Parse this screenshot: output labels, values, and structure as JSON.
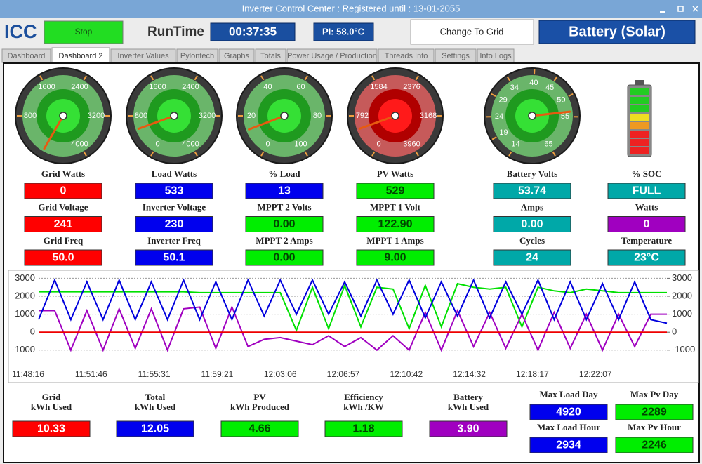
{
  "window": {
    "title": "Inverter Control Center : Registered until : 13-01-2055"
  },
  "toolbar": {
    "logo": "ICC",
    "stop": "Stop",
    "runtime_label": "RunTime",
    "runtime": "00:37:35",
    "pi_temp": "PI: 58.0°C",
    "mode_button": "Change To Grid",
    "mode": "Battery (Solar)"
  },
  "tabs": [
    "Dashboard",
    "Dashboard 2",
    "Inverter Values",
    "Pylontech",
    "Graphs",
    "Totals",
    "Power Usage / Production",
    "Threads Info",
    "Settings",
    "Info Logs"
  ],
  "selected_tab": 1,
  "columns": [
    {
      "gauge": {
        "lim": [
          0,
          4000
        ],
        "ticks": [
          800,
          1600,
          2400,
          3200,
          4000
        ],
        "colors": [
          "#6ab56a",
          "#1f9a1f",
          "#35e035"
        ]
      },
      "fields": [
        {
          "label": "Grid Watts",
          "value": 0,
          "color": "#ff0000"
        },
        {
          "label": "Grid Voltage",
          "value": 241,
          "color": "#ff0000"
        },
        {
          "label": "Grid Freq",
          "value": 50,
          "value_label": "50.0",
          "color": "#ff0000"
        }
      ]
    },
    {
      "gauge": {
        "lim": [
          0,
          4000
        ],
        "ticks": [
          0,
          800,
          1600,
          2400,
          3200,
          4000
        ],
        "colors": [
          "#6ab56a",
          "#1f9a1f",
          "#35e035"
        ]
      },
      "fields": [
        {
          "label": "Load Watts",
          "value": 533,
          "color": "#0000ee"
        },
        {
          "label": "Inverter Voltage",
          "value": 230,
          "color": "#0000ee"
        },
        {
          "label": "Inverter Freq",
          "value": 50.1,
          "color": "#0000ee"
        }
      ]
    },
    {
      "gauge": {
        "lim": [
          0,
          100
        ],
        "ticks": [
          0,
          20,
          40,
          60,
          80,
          100
        ],
        "colors": [
          "#6ab56a",
          "#1f9a1f",
          "#35e035"
        ]
      },
      "fields": [
        {
          "label": "% Load",
          "value": 13,
          "color": "#0000ee"
        },
        {
          "label": "MPPT 2 Volts",
          "value": 0,
          "value_label": "0.00",
          "color": "#00ee00"
        },
        {
          "label": "MPPT 2 Amps",
          "value": 0,
          "value_label": "0.00",
          "color": "#00ee00"
        }
      ]
    },
    {
      "gauge": {
        "lim": [
          0,
          3960
        ],
        "ticks": [
          0,
          792,
          1584,
          2376,
          3168,
          3960
        ],
        "colors": [
          "#c65a5a",
          "#b00000",
          "#ff1a1a"
        ]
      },
      "fields": [
        {
          "label": "PV Watts",
          "value": 529,
          "color": "#00ee00"
        },
        {
          "label": "MPPT 1 Volt",
          "value": 122.9,
          "value_label": "122.90",
          "color": "#00ee00"
        },
        {
          "label": "MPPT 1 Amps",
          "value": 9,
          "value_label": "9.00",
          "color": "#00ee00"
        }
      ]
    },
    {
      "gauge": {
        "lim": [
          14,
          65
        ],
        "ticks": [
          14,
          19,
          24,
          29,
          34,
          40,
          45,
          50,
          55,
          65
        ],
        "colors": [
          "#6ab56a",
          "#1f9a1f",
          "#35e035"
        ]
      },
      "fields": [
        {
          "label": "Battery Volts",
          "value": 53.74,
          "color": "#00a8a8"
        },
        {
          "label": "Amps",
          "value": 0,
          "value_label": "0.00",
          "color": "#00a8a8"
        },
        {
          "label": "Cycles",
          "value": 24,
          "color": "#00a8a8"
        }
      ]
    },
    {
      "fields": [
        {
          "label": "% SOC",
          "value": "FULL",
          "color": "#00a8a8"
        },
        {
          "label": "Watts",
          "value": 0,
          "color": "#a000c0"
        },
        {
          "label": "Temperature",
          "value": 23,
          "value_label": "23°C",
          "color": "#00a8a8"
        }
      ]
    }
  ],
  "chart": {
    "type": "line",
    "x_labels": [
      "11:48:16",
      "11:51:46",
      "11:55:31",
      "11:59:21",
      "12:03:06",
      "12:06:57",
      "12:10:42",
      "12:14:32",
      "12:18:17",
      "12:22:07"
    ],
    "ylim": [
      -1750,
      3250
    ],
    "yticks": [
      3000,
      2000,
      1000,
      0,
      -1000
    ],
    "y2lim": [
      -1750,
      3250
    ],
    "y2ticks": [
      3000,
      2000,
      1000,
      0,
      -1000
    ],
    "grid": true,
    "series": [
      {
        "color": "#00e000",
        "values": [
          2250,
          2250,
          2250,
          2250,
          2250,
          2250,
          2250,
          2250,
          2250,
          2250,
          2200,
          2200,
          2200,
          2200,
          2200,
          2200,
          100,
          2500,
          200,
          2600,
          300,
          2500,
          2400,
          200,
          2600,
          300,
          2700,
          2500,
          2400,
          2500,
          300,
          2500,
          2300,
          2200,
          2400,
          2300,
          2200,
          2200,
          2200,
          2200
        ]
      },
      {
        "color": "#a000c0",
        "values": [
          1200,
          1200,
          -1000,
          1200,
          -1000,
          1300,
          -900,
          1300,
          -1000,
          1300,
          1400,
          -900,
          1400,
          -800,
          -400,
          -300,
          -500,
          -700,
          -200,
          -800,
          -300,
          -1000,
          -200,
          -1000,
          1100,
          -1000,
          1200,
          -800,
          1100,
          -900,
          1000,
          -1000,
          1100,
          -900,
          1000,
          -1000,
          1000,
          -800,
          1000,
          1000
        ]
      },
      {
        "color": "#0000dd",
        "values": [
          700,
          2900,
          700,
          2800,
          700,
          2900,
          700,
          2800,
          700,
          2900,
          700,
          2800,
          700,
          2900,
          900,
          2900,
          1000,
          2900,
          1000,
          2800,
          900,
          2900,
          1000,
          2900,
          800,
          2800,
          900,
          2900,
          800,
          2800,
          1000,
          2900,
          700,
          2800,
          700,
          2700,
          700,
          2800,
          700,
          500
        ]
      },
      {
        "color": "#ee0000",
        "values": [
          0,
          0,
          0,
          0,
          0,
          0,
          0,
          0,
          0,
          0,
          0,
          0,
          0,
          0,
          0,
          0,
          0,
          0,
          0,
          0,
          0,
          0,
          0,
          0,
          0,
          0,
          0,
          0,
          0,
          0,
          0,
          0,
          0,
          0,
          0,
          0,
          0,
          0,
          0,
          0
        ]
      }
    ]
  },
  "totals": [
    {
      "label": [
        "Grid",
        "kWh Used"
      ],
      "value": 10.33,
      "color": "#ff0000"
    },
    {
      "label": [
        "Total",
        "kWh Used"
      ],
      "value": 12.05,
      "color": "#0000ee"
    },
    {
      "label": [
        "PV",
        "kWh Produced"
      ],
      "value": 4.66,
      "color": "#00ee00"
    },
    {
      "label": [
        "Efficiency",
        "kWh /KW"
      ],
      "value": 1.18,
      "color": "#00ee00"
    },
    {
      "label": [
        "Battery",
        "kWh Used"
      ],
      "value": 3.9,
      "value_label": "3.90",
      "color": "#a000c0"
    }
  ],
  "maxima": [
    {
      "label": "Max Load Day",
      "value": 4920,
      "color": "#0000ee"
    },
    {
      "label": "Max Load Hour",
      "value": 2934,
      "color": "#0000ee"
    },
    {
      "label": "Max Pv Day",
      "value": 2289,
      "color": "#00ee00"
    },
    {
      "label": "Max Pv Hour",
      "value": 2246,
      "color": "#00ee00"
    }
  ]
}
